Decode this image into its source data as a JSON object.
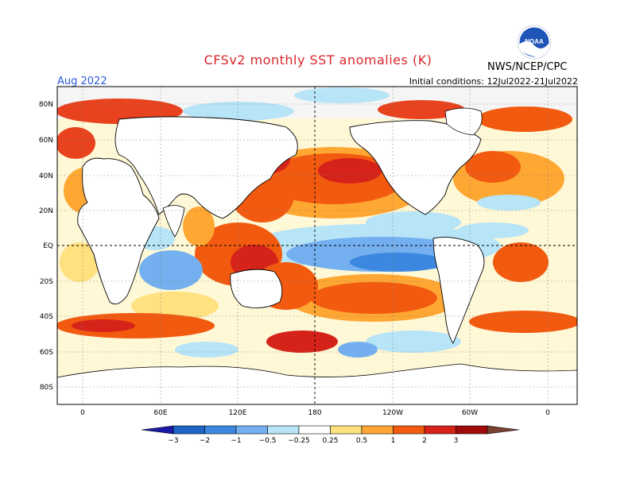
{
  "header": {
    "title": "CFSv2 monthly SST anomalies (K)",
    "period": "Aug 2022",
    "init_label": "Initial conditions: 12Jul2022-21Jul2022",
    "org": "NWS/NCEP/CPC",
    "logo_text": "NOAA"
  },
  "axes": {
    "lat_labels": [
      "80N",
      "60N",
      "40N",
      "20N",
      "EQ",
      "20S",
      "40S",
      "60S",
      "80S"
    ],
    "lon_labels": [
      "0",
      "60E",
      "120E",
      "180",
      "120W",
      "60W",
      "0"
    ]
  },
  "colorbar": {
    "labels": [
      "-3",
      "-2",
      "-1",
      "-0.5",
      "-0.25",
      "0.25",
      "0.5",
      "1",
      "2",
      "3"
    ],
    "colors": [
      "#1a1aa6",
      "#1f63c7",
      "#3c88e0",
      "#74b0ef",
      "#b7e4f7",
      "#ffffff",
      "#ffe180",
      "#ffa733",
      "#f25a10",
      "#d6231a",
      "#a10b0b",
      "#7a4030"
    ]
  },
  "palette": {
    "land": "#ffffff",
    "coast": "#000000",
    "grid": "#555555"
  }
}
